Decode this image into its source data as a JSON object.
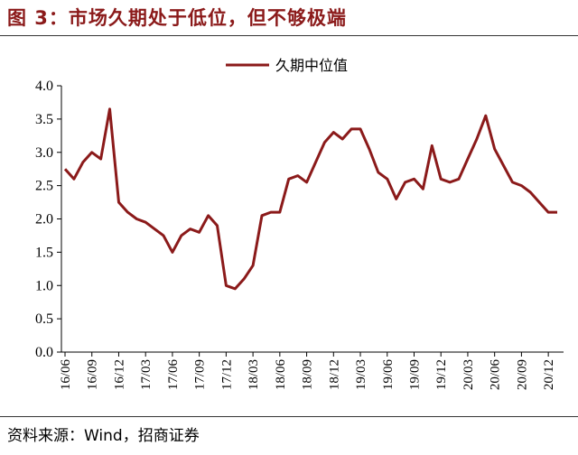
{
  "header": {
    "title": "图 3：市场久期处于低位，但不够极端"
  },
  "footer": {
    "source": "资料来源：Wind，招商证券"
  },
  "colors": {
    "series": "#8B1A1A",
    "title": "#8B1A1A"
  },
  "chart_data": {
    "type": "line",
    "title": "市场久期处于低位，但不够极端",
    "legend": "top-center",
    "grid": false,
    "ylim": [
      0.0,
      4.0
    ],
    "yticks": [
      "0.0",
      "0.5",
      "1.0",
      "1.5",
      "2.0",
      "2.5",
      "3.0",
      "3.5",
      "4.0"
    ],
    "xticks": [
      "16/06",
      "16/09",
      "16/12",
      "17/03",
      "17/06",
      "17/09",
      "17/12",
      "18/03",
      "18/06",
      "18/09",
      "18/12",
      "19/03",
      "19/06",
      "19/09",
      "19/12",
      "20/03",
      "20/06",
      "20/09",
      "20/12"
    ],
    "series": [
      {
        "name": "久期中位值",
        "x": [
          "2016-06",
          "2016-07",
          "2016-08",
          "2016-09",
          "2016-10",
          "2016-11",
          "2016-12",
          "2017-01",
          "2017-02",
          "2017-03",
          "2017-04",
          "2017-05",
          "2017-06",
          "2017-07",
          "2017-08",
          "2017-09",
          "2017-10",
          "2017-11",
          "2017-12",
          "2018-01",
          "2018-02",
          "2018-03",
          "2018-04",
          "2018-05",
          "2018-06",
          "2018-07",
          "2018-08",
          "2018-09",
          "2018-10",
          "2018-11",
          "2018-12",
          "2019-01",
          "2019-02",
          "2019-03",
          "2019-04",
          "2019-05",
          "2019-06",
          "2019-07",
          "2019-08",
          "2019-09",
          "2019-10",
          "2019-11",
          "2019-12",
          "2020-01",
          "2020-02",
          "2020-03",
          "2020-04",
          "2020-05",
          "2020-06",
          "2020-07",
          "2020-08",
          "2020-09",
          "2020-10",
          "2020-11",
          "2020-12",
          "2021-01"
        ],
        "values": [
          2.75,
          2.6,
          2.85,
          3.0,
          2.9,
          3.65,
          2.25,
          2.1,
          2.0,
          1.95,
          1.85,
          1.75,
          1.5,
          1.75,
          1.85,
          1.8,
          2.05,
          1.9,
          1.0,
          0.95,
          1.1,
          1.3,
          2.05,
          2.1,
          2.1,
          2.6,
          2.65,
          2.55,
          2.85,
          3.15,
          3.3,
          3.2,
          3.35,
          3.35,
          3.05,
          2.7,
          2.6,
          2.3,
          2.55,
          2.6,
          2.45,
          3.1,
          2.6,
          2.55,
          2.6,
          2.9,
          3.2,
          3.55,
          3.05,
          2.8,
          2.55,
          2.5,
          2.4,
          2.25,
          2.1,
          2.1
        ]
      }
    ]
  }
}
